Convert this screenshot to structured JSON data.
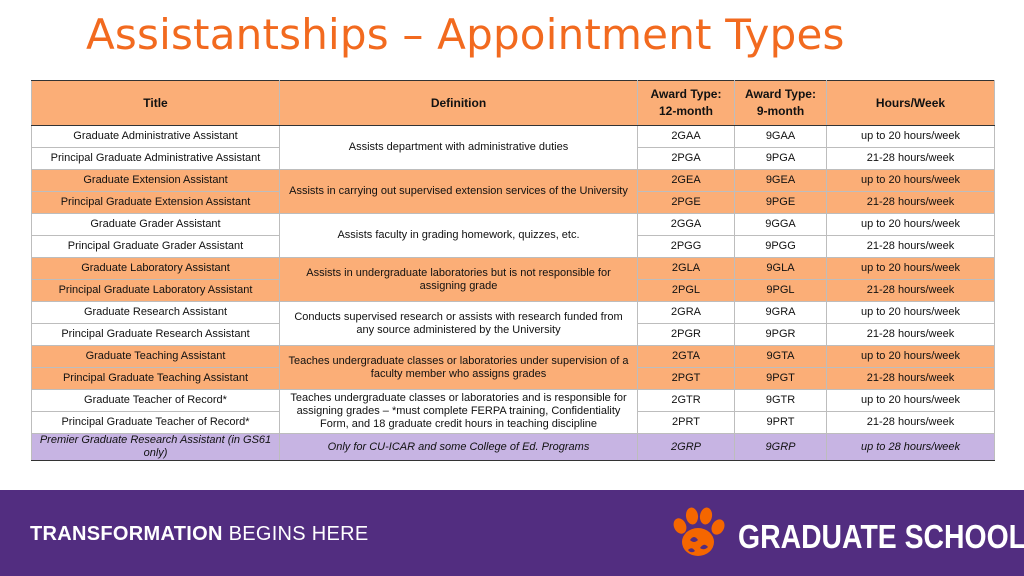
{
  "page_title": "Assistantships – Appointment Types",
  "table": {
    "headers": {
      "title": "Title",
      "definition": "Definition",
      "award12_line1": "Award Type:",
      "award12_line2": "12-month",
      "award9_line1": "Award Type:",
      "award9_line2": "9-month",
      "hours": "Hours/Week"
    },
    "rows": [
      {
        "title": "Graduate Administrative Assistant",
        "definition": "Assists department with administrative duties",
        "award12": "2GAA",
        "award9": "9GAA",
        "hours": "up to 20 hours/week"
      },
      {
        "title": "Principal Graduate Administrative Assistant",
        "award12": "2PGA",
        "award9": "9PGA",
        "hours": "21-28 hours/week"
      },
      {
        "title": "Graduate Extension Assistant",
        "definition": "Assists in carrying out supervised extension services of the University",
        "award12": "2GEA",
        "award9": "9GEA",
        "hours": "up to 20 hours/week"
      },
      {
        "title": "Principal Graduate Extension Assistant",
        "award12": "2PGE",
        "award9": "9PGE",
        "hours": "21-28 hours/week"
      },
      {
        "title": "Graduate Grader Assistant",
        "definition": "Assists faculty in grading homework, quizzes, etc.",
        "award12": "2GGA",
        "award9": "9GGA",
        "hours": "up to 20 hours/week"
      },
      {
        "title": "Principal Graduate Grader Assistant",
        "award12": "2PGG",
        "award9": "9PGG",
        "hours": "21-28 hours/week"
      },
      {
        "title": "Graduate Laboratory Assistant",
        "definition": "Assists in undergraduate laboratories but is not responsible for assigning grade",
        "award12": "2GLA",
        "award9": "9GLA",
        "hours": "up to 20 hours/week"
      },
      {
        "title": "Principal Graduate Laboratory Assistant",
        "award12": "2PGL",
        "award9": "9PGL",
        "hours": "21-28 hours/week"
      },
      {
        "title": "Graduate Research Assistant",
        "definition": "Conducts supervised research or assists with research funded from any source administered by the University",
        "award12": "2GRA",
        "award9": "9GRA",
        "hours": "up to 20 hours/week"
      },
      {
        "title": "Principal Graduate Research Assistant",
        "award12": "2PGR",
        "award9": "9PGR",
        "hours": "21-28 hours/week"
      },
      {
        "title": "Graduate Teaching Assistant",
        "definition": "Teaches undergraduate classes or laboratories under supervision of a faculty member who assigns grades",
        "award12": "2GTA",
        "award9": "9GTA",
        "hours": "up to 20 hours/week"
      },
      {
        "title": "Principal Graduate Teaching Assistant",
        "award12": "2PGT",
        "award9": "9PGT",
        "hours": "21-28 hours/week"
      },
      {
        "title": "Graduate Teacher of Record*",
        "definition": "Teaches undergraduate classes or laboratories and is responsible for assigning grades – *must complete FERPA training, Confidentiality Form, and 18 graduate credit hours in teaching discipline",
        "award12": "2GTR",
        "award9": "9GTR",
        "hours": "up to 20 hours/week"
      },
      {
        "title": "Principal Graduate Teacher of Record*",
        "award12": "2PRT",
        "award9": "9PRT",
        "hours": "21-28 hours/week"
      },
      {
        "title": "Premier Graduate Research Assistant (in GS61 only)",
        "definition": "Only for CU-ICAR and some College of Ed. Programs",
        "award12": "2GRP",
        "award9": "9GRP",
        "hours": "up to 28 hours/week"
      }
    ]
  },
  "footer": {
    "tagline_bold": "TRANSFORMATION",
    "tagline_rest": "BEGINS HERE",
    "brand": "GRADUATE SCHOOL",
    "logo_icon": "tiger-paw-icon"
  },
  "colors": {
    "title": "#f26a1f",
    "header_fill": "#fbae77",
    "orange_row_fill": "#fbae77",
    "purple_row_fill": "#c7b4e3",
    "footer_fill": "#522d80",
    "paw": "#f56600"
  }
}
